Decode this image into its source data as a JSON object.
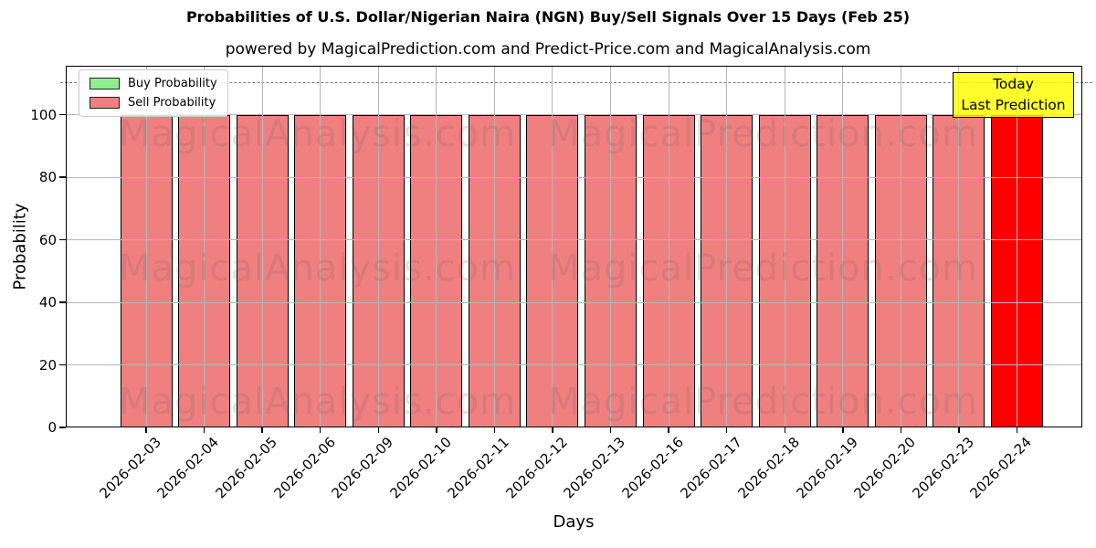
{
  "chart_data": {
    "type": "bar",
    "title": "Probabilities of U.S. Dollar/Nigerian Naira (NGN) Buy/Sell Signals Over 15 Days (Feb 25)",
    "subtitle": "powered by MagicalPrediction.com and Predict-Price.com and MagicalAnalysis.com",
    "xlabel": "Days",
    "ylabel": "Probability",
    "categories": [
      "2026-02-03",
      "2026-02-04",
      "2026-02-05",
      "2026-02-06",
      "2026-02-09",
      "2026-02-10",
      "2026-02-11",
      "2026-02-12",
      "2026-02-13",
      "2026-02-16",
      "2026-02-17",
      "2026-02-18",
      "2026-02-19",
      "2026-02-20",
      "2026-02-23",
      "2026-02-24"
    ],
    "series": [
      {
        "name": "Buy Probability",
        "color": "#90EE90",
        "values": [
          0,
          0,
          0,
          0,
          0,
          0,
          0,
          0,
          0,
          0,
          0,
          0,
          0,
          0,
          0,
          0
        ]
      },
      {
        "name": "Sell Probability",
        "color": "#F08080",
        "values": [
          100,
          100,
          100,
          100,
          100,
          100,
          100,
          100,
          100,
          100,
          100,
          100,
          100,
          100,
          100,
          100
        ]
      }
    ],
    "today_highlight": {
      "index": 15,
      "color": "#FF0000"
    },
    "ylim": [
      0,
      115.6
    ],
    "yticks": [
      0,
      20,
      40,
      60,
      80,
      100
    ],
    "dashed_line_y": 110,
    "grid": true,
    "legend_position": "upper-left",
    "annotation": {
      "line1": "Today",
      "line2": "Last Prediction",
      "bg_color": "#FFFF00"
    },
    "watermarks": [
      "MagicalAnalysis.com",
      "MagicalPrediction.com"
    ]
  }
}
